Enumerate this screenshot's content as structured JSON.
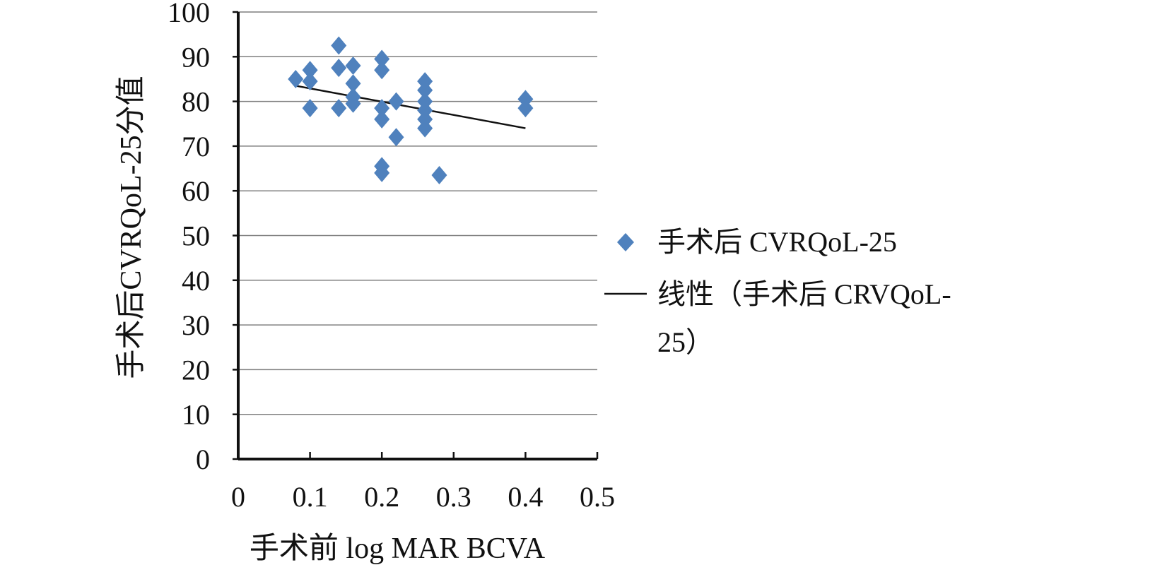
{
  "chart_data": {
    "type": "scatter",
    "title": "",
    "xlabel": "手术前 log MAR BCVA",
    "ylabel": "手术后CVRQoL-25分值",
    "xlim": [
      0,
      0.5
    ],
    "ylim": [
      0,
      100
    ],
    "x_ticks": [
      0,
      0.1,
      0.2,
      0.3,
      0.4,
      0.5
    ],
    "x_tick_labels": [
      "0",
      "0.1",
      "0.2",
      "0.3",
      "0.4",
      "0.5"
    ],
    "y_ticks": [
      0,
      10,
      20,
      30,
      40,
      50,
      60,
      70,
      80,
      90,
      100
    ],
    "y_tick_labels": [
      "0",
      "10",
      "20",
      "30",
      "40",
      "50",
      "60",
      "70",
      "80",
      "90",
      "100"
    ],
    "grid": "horizontal",
    "legend_position": "right",
    "series": [
      {
        "name": "手术后 CVRQoL-25",
        "marker": "diamond",
        "color": "#4f81bd",
        "points": [
          {
            "x": 0.08,
            "y": 85
          },
          {
            "x": 0.1,
            "y": 87
          },
          {
            "x": 0.1,
            "y": 84.5
          },
          {
            "x": 0.1,
            "y": 78.5
          },
          {
            "x": 0.14,
            "y": 92.5
          },
          {
            "x": 0.14,
            "y": 87.5
          },
          {
            "x": 0.14,
            "y": 78.5
          },
          {
            "x": 0.16,
            "y": 88
          },
          {
            "x": 0.16,
            "y": 84
          },
          {
            "x": 0.16,
            "y": 81
          },
          {
            "x": 0.16,
            "y": 79.5
          },
          {
            "x": 0.2,
            "y": 89.5
          },
          {
            "x": 0.2,
            "y": 87
          },
          {
            "x": 0.2,
            "y": 78.5
          },
          {
            "x": 0.2,
            "y": 76
          },
          {
            "x": 0.2,
            "y": 65.5
          },
          {
            "x": 0.2,
            "y": 64
          },
          {
            "x": 0.22,
            "y": 80
          },
          {
            "x": 0.22,
            "y": 72
          },
          {
            "x": 0.26,
            "y": 84.5
          },
          {
            "x": 0.26,
            "y": 82.5
          },
          {
            "x": 0.26,
            "y": 80
          },
          {
            "x": 0.26,
            "y": 78
          },
          {
            "x": 0.26,
            "y": 76
          },
          {
            "x": 0.26,
            "y": 74
          },
          {
            "x": 0.28,
            "y": 63.5
          },
          {
            "x": 0.4,
            "y": 80.5
          },
          {
            "x": 0.4,
            "y": 78.5
          }
        ]
      },
      {
        "name": "线性（手术后 CRVQoL-25）",
        "legend_lines": [
          "线性（手术后 CRVQoL-",
          "25）"
        ],
        "type": "line",
        "color": "#111111",
        "points": [
          {
            "x": 0.08,
            "y": 83.5
          },
          {
            "x": 0.4,
            "y": 74
          }
        ]
      }
    ]
  }
}
